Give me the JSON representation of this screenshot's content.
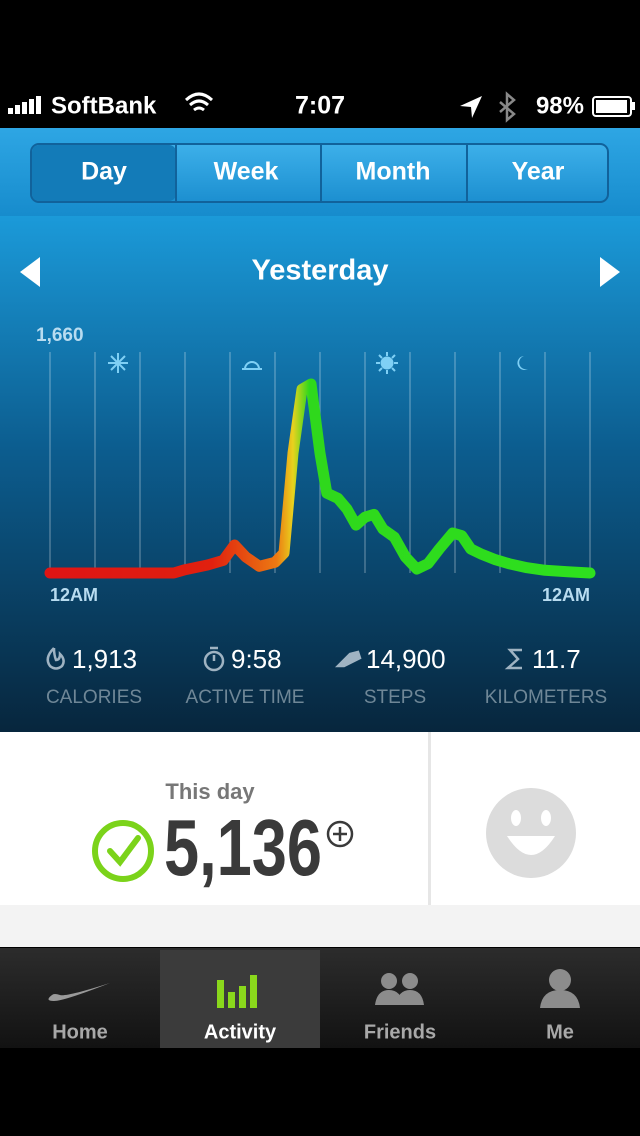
{
  "status_bar": {
    "carrier": "SoftBank",
    "time": "7:07",
    "battery": "98%"
  },
  "segments": [
    "Day",
    "Week",
    "Month",
    "Year"
  ],
  "period": "Yesterday",
  "chart_data": {
    "type": "line",
    "x": [
      0,
      5.5,
      6,
      7,
      7.7,
      8.2,
      8.7,
      9.3,
      10,
      10.4,
      10.8,
      11.2,
      11.6,
      12,
      12.3,
      12.8,
      13.2,
      13.6,
      14,
      14.4,
      14.8,
      15.3,
      15.8,
      16.3,
      16.8,
      17.3,
      17.9,
      18.3,
      18.7,
      19.2,
      19.8,
      20.4,
      21.2,
      22,
      23,
      24
    ],
    "values": [
      0,
      0,
      25,
      60,
      95,
      210,
      120,
      50,
      80,
      150,
      900,
      1380,
      1420,
      900,
      600,
      560,
      480,
      360,
      420,
      440,
      330,
      270,
      120,
      30,
      70,
      180,
      300,
      280,
      180,
      140,
      100,
      70,
      40,
      20,
      10,
      0
    ],
    "xlim": [
      0,
      24
    ],
    "xticks": [
      {
        "value": 0,
        "label": "12AM"
      },
      {
        "value": 24,
        "label": "12AM"
      }
    ],
    "ylim": [
      0,
      1660
    ],
    "yticks": [
      {
        "value": 1660,
        "label": "1,660"
      }
    ],
    "colors": [
      "#e01414",
      "#e0200f",
      "#ec7a12",
      "#e8d21e",
      "#2fd81c",
      "#2ee01e"
    ]
  },
  "stats": [
    {
      "value": "1,913",
      "label": "CALORIES"
    },
    {
      "value": "9:58",
      "label": "ACTIVE TIME"
    },
    {
      "value": "14,900",
      "label": "STEPS"
    },
    {
      "value": "11.7",
      "label": "KILOMETERS"
    }
  ],
  "summary": {
    "caption": "This day",
    "points": "5,136"
  },
  "tabs": [
    "Home",
    "Activity",
    "Friends",
    "Me"
  ]
}
